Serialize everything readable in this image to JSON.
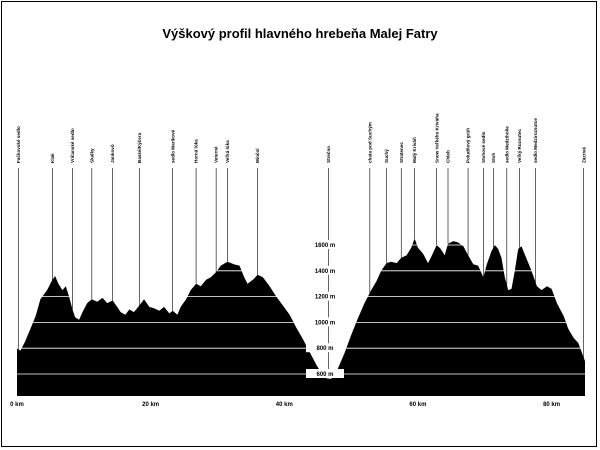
{
  "chart_data": {
    "type": "area",
    "title": "Výškový profil hlavného hrebeňa Malej Fatry",
    "xlabel": "",
    "ylabel": "",
    "x_unit": "km",
    "y_unit": "m",
    "xlim": [
      0,
      85
    ],
    "ylim": [
      500,
      1800
    ],
    "x_ticks": [
      {
        "value": 0,
        "label": "0 km"
      },
      {
        "value": 20,
        "label": "20 km"
      },
      {
        "value": 40,
        "label": "40 km"
      },
      {
        "value": 60,
        "label": "60 km"
      },
      {
        "value": 80,
        "label": "80 km"
      }
    ],
    "y_ticks": [
      {
        "value": 600,
        "label": "600 m"
      },
      {
        "value": 800,
        "label": "800 m"
      },
      {
        "value": 1000,
        "label": "1000 m"
      },
      {
        "value": 1200,
        "label": "1200 m"
      },
      {
        "value": 1400,
        "label": "1400 m"
      },
      {
        "value": 1600,
        "label": "1600 m"
      }
    ],
    "grid": "horizontal",
    "fill_color": "#000000",
    "grid_color": "#ffffff",
    "profile": [
      [
        0,
        800
      ],
      [
        0.5,
        780
      ],
      [
        1.2,
        850
      ],
      [
        2,
        950
      ],
      [
        2.8,
        1050
      ],
      [
        3.5,
        1180
      ],
      [
        4.5,
        1250
      ],
      [
        5.3,
        1330
      ],
      [
        5.7,
        1360
      ],
      [
        6.2,
        1300
      ],
      [
        6.8,
        1250
      ],
      [
        7.3,
        1280
      ],
      [
        7.8,
        1200
      ],
      [
        8.3,
        1100
      ],
      [
        8.7,
        1040
      ],
      [
        9.3,
        1020
      ],
      [
        9.8,
        1080
      ],
      [
        10.5,
        1150
      ],
      [
        11.2,
        1180
      ],
      [
        12,
        1160
      ],
      [
        12.8,
        1190
      ],
      [
        13.5,
        1150
      ],
      [
        14.3,
        1170
      ],
      [
        15,
        1120
      ],
      [
        15.5,
        1080
      ],
      [
        16.2,
        1060
      ],
      [
        16.8,
        1100
      ],
      [
        17.5,
        1080
      ],
      [
        18.3,
        1130
      ],
      [
        19,
        1180
      ],
      [
        19.8,
        1120
      ],
      [
        20.5,
        1110
      ],
      [
        21.3,
        1090
      ],
      [
        22,
        1120
      ],
      [
        22.8,
        1070
      ],
      [
        23.3,
        1090
      ],
      [
        24,
        1060
      ],
      [
        24.5,
        1120
      ],
      [
        25.3,
        1180
      ],
      [
        26,
        1250
      ],
      [
        26.8,
        1300
      ],
      [
        27.5,
        1280
      ],
      [
        28.3,
        1330
      ],
      [
        29,
        1350
      ],
      [
        29.8,
        1390
      ],
      [
        30.5,
        1440
      ],
      [
        31.5,
        1470
      ],
      [
        32.5,
        1450
      ],
      [
        33.3,
        1440
      ],
      [
        34,
        1350
      ],
      [
        34.5,
        1300
      ],
      [
        35.3,
        1330
      ],
      [
        36,
        1370
      ],
      [
        36.8,
        1350
      ],
      [
        37.8,
        1280
      ],
      [
        38.8,
        1200
      ],
      [
        39.8,
        1130
      ],
      [
        40.8,
        1060
      ],
      [
        41.8,
        960
      ],
      [
        42.8,
        870
      ],
      [
        43.8,
        770
      ],
      [
        44.8,
        670
      ],
      [
        45.8,
        590
      ],
      [
        46.6,
        560
      ],
      [
        47.3,
        570
      ],
      [
        48,
        640
      ],
      [
        49,
        760
      ],
      [
        50,
        900
      ],
      [
        51,
        1030
      ],
      [
        52,
        1150
      ],
      [
        53,
        1250
      ],
      [
        53.8,
        1320
      ],
      [
        54.5,
        1400
      ],
      [
        55.3,
        1460
      ],
      [
        56,
        1470
      ],
      [
        56.8,
        1460
      ],
      [
        57.5,
        1500
      ],
      [
        58.3,
        1520
      ],
      [
        59,
        1580
      ],
      [
        59.5,
        1650
      ],
      [
        60,
        1580
      ],
      [
        60.8,
        1530
      ],
      [
        61.5,
        1460
      ],
      [
        62,
        1510
      ],
      [
        62.8,
        1600
      ],
      [
        63.4,
        1570
      ],
      [
        64,
        1520
      ],
      [
        64.5,
        1610
      ],
      [
        65.3,
        1630
      ],
      [
        66,
        1620
      ],
      [
        66.8,
        1590
      ],
      [
        67.5,
        1520
      ],
      [
        68.3,
        1450
      ],
      [
        69,
        1440
      ],
      [
        69.8,
        1350
      ],
      [
        70.3,
        1450
      ],
      [
        71,
        1550
      ],
      [
        71.5,
        1600
      ],
      [
        72,
        1570
      ],
      [
        72.5,
        1500
      ],
      [
        73,
        1350
      ],
      [
        73.5,
        1250
      ],
      [
        74,
        1260
      ],
      [
        74.5,
        1400
      ],
      [
        75,
        1570
      ],
      [
        75.5,
        1590
      ],
      [
        76.2,
        1500
      ],
      [
        77,
        1400
      ],
      [
        77.8,
        1280
      ],
      [
        78.5,
        1250
      ],
      [
        79.3,
        1280
      ],
      [
        80,
        1260
      ],
      [
        80.8,
        1150
      ],
      [
        81.8,
        1050
      ],
      [
        82.5,
        950
      ],
      [
        83.3,
        880
      ],
      [
        84,
        840
      ],
      [
        85,
        700
      ]
    ],
    "annotations": [
      {
        "label": "Fačkovské sedlo",
        "x": 0.2
      },
      {
        "label": "Klak",
        "x": 5.3
      },
      {
        "label": "Vríčanské sedlo",
        "x": 8.3
      },
      {
        "label": "Skalky",
        "x": 11.2
      },
      {
        "label": "Jankovô",
        "x": 14.3
      },
      {
        "label": "Baské/Kýčera",
        "x": 18.3
      },
      {
        "label": "sedlo Maríkové",
        "x": 23.3
      },
      {
        "label": "Horná lúka",
        "x": 26.8
      },
      {
        "label": "Veterné",
        "x": 29.8
      },
      {
        "label": "Veľká lúka",
        "x": 31.5
      },
      {
        "label": "Minčol",
        "x": 36
      },
      {
        "label": "Strečno",
        "x": 46.6
      },
      {
        "label": "chata pod Suchým",
        "x": 52.8
      },
      {
        "label": "Suchý",
        "x": 55.3
      },
      {
        "label": "Stratenec",
        "x": 57.5
      },
      {
        "label": "Malý Kriváň",
        "x": 59.5
      },
      {
        "label": "Snow Veľkého Kriváňa",
        "x": 62.8
      },
      {
        "label": "Chleb",
        "x": 64.5
      },
      {
        "label": "Poludňový grúň",
        "x": 67.5
      },
      {
        "label": "Stohové sedlo",
        "x": 69.8
      },
      {
        "label": "Stoh",
        "x": 71.3
      },
      {
        "label": "sedlo Medziholie",
        "x": 73.3
      },
      {
        "label": "Veľký Rozsutec",
        "x": 75.2
      },
      {
        "label": "sedlo Medzirozsutce",
        "x": 77.6
      },
      {
        "label": "Zázrivá",
        "x": 84.8
      }
    ]
  }
}
